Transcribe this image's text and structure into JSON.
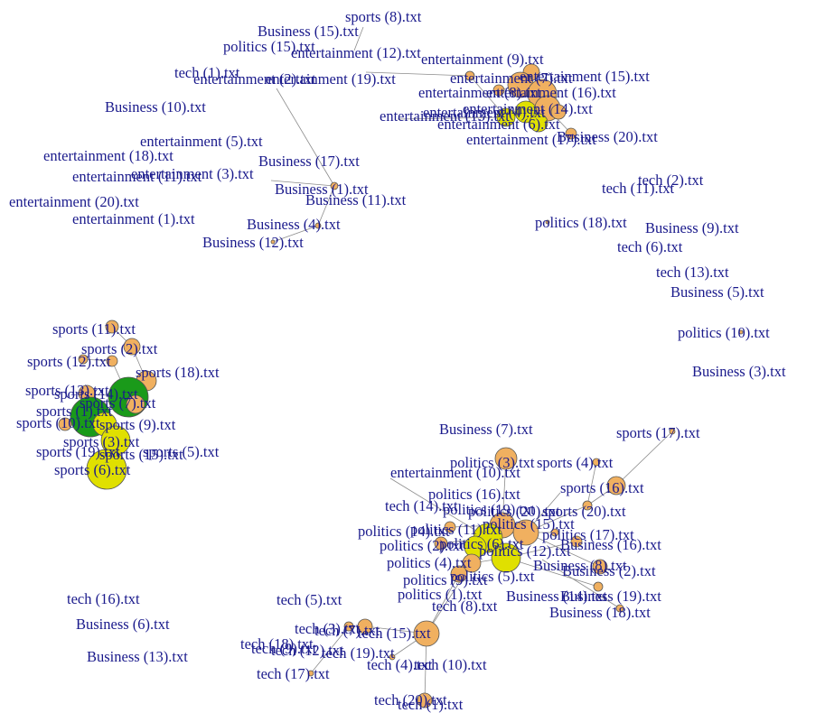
{
  "colors": {
    "label": "#1a1a8c",
    "edge": "#8c8c8c",
    "node_orange": "#f0b060",
    "node_yellow": "#e0e000",
    "node_green": "#1a9a1a"
  },
  "labels": [
    "sports (8).txt",
    "Business (15).txt",
    "politics (15).txt",
    "entertainment (12).txt",
    "entertainment (9).txt",
    "tech (1).txt",
    "entertainment (2).txt",
    "entertainment (19).txt",
    "entertainment (7).txt",
    "entertainment (15).txt",
    "entertainment (16).txt",
    "entertainment (8).txt",
    "entertainment (14).txt",
    "entertainment (13).txt",
    "entertainment (4).txt",
    "entertainment (6).txt",
    "entertainment (17).txt",
    "Business (20).txt",
    "Business (10).txt",
    "entertainment (5).txt",
    "entertainment (18).txt",
    "Business (17).txt",
    "entertainment (3).txt",
    "entertainment (11).txt",
    "Business (1).txt",
    "entertainment (20).txt",
    "Business (11).txt",
    "entertainment (1).txt",
    "Business (4).txt",
    "Business (12).txt",
    "tech (2).txt",
    "tech (11).txt",
    "politics (18).txt",
    "Business (9).txt",
    "tech (6).txt",
    "tech (13).txt",
    "Business (5).txt",
    "politics (10).txt",
    "Business (3).txt",
    "sports (11).txt",
    "sports (2).txt",
    "sports (12).txt",
    "sports (18).txt",
    "sports (13).txt",
    "sports (14).txt",
    "sports (1).txt",
    "sports (9).txt",
    "sports (10).txt",
    "sports (3).txt",
    "sports (19).txt",
    "sports (15).txt",
    "sports (5).txt",
    "sports (6).txt",
    "sports (7).txt",
    "Business (7).txt",
    "sports (17).txt",
    "politics (3).txt",
    "sports (4).txt",
    "entertainment (10).txt",
    "sports (16).txt",
    "politics (16).txt",
    "tech (14).txt",
    "politics (19).txt",
    "sports (20).txt",
    "politics (20).txt",
    "politics (15).txt",
    "politics (17).txt",
    "politics (14).txt",
    "politics (11).txt",
    "Business (16).txt",
    "politics (2).txt",
    "politics (6).txt",
    "politics (12).txt",
    "Business (8).txt",
    "politics (4).txt",
    "Business (2).txt",
    "politics (9).txt",
    "politics (5).txt",
    "politics (1).txt",
    "tech (8).txt",
    "Business (14).txt",
    "Business (19).txt",
    "Business (18).txt",
    "tech (16).txt",
    "Business (6).txt",
    "Business (13).txt",
    "tech (5).txt",
    "tech (3).txt",
    "tech (18).txt",
    "tech (12).txt",
    "tech (9).txt",
    "tech (7).txt",
    "tech (19).txt",
    "tech (15).txt",
    "tech (4).txt",
    "tech (10).txt",
    "tech (17).txt",
    "tech (20).txt",
    "tech (1).txt"
  ]
}
